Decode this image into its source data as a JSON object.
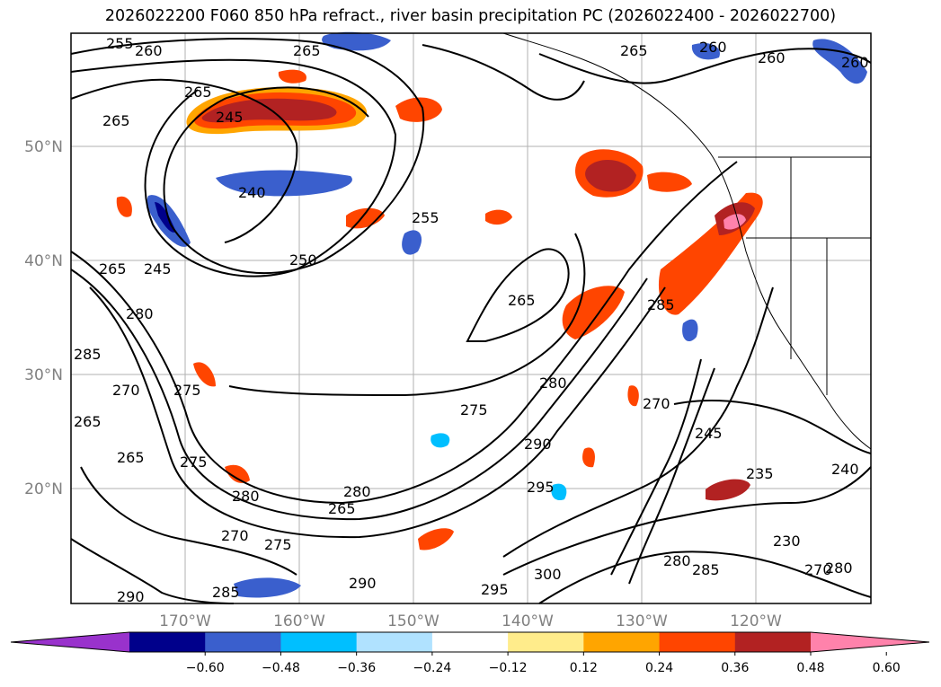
{
  "title": "2026022200 F060 850 hPa refract., river basin precipitation PC (2026022400 - 2026022700)",
  "lat_labels": [
    "50°N",
    "40°N",
    "30°N",
    "20°N"
  ],
  "lon_labels": [
    "170°W",
    "160°W",
    "150°W",
    "140°W",
    "130°W",
    "120°W"
  ],
  "colorbar": {
    "tick_labels": [
      "−0.60",
      "−0.48",
      "−0.36",
      "−0.24",
      "−0.12",
      "0.12",
      "0.24",
      "0.36",
      "0.48",
      "0.60"
    ],
    "colors": [
      "#9932cc",
      "#00008b",
      "#3a5fcd",
      "#00bfff",
      "#b0e2ff",
      "#ffffff",
      "#ffec8b",
      "#ffa500",
      "#ff4500",
      "#b22222",
      "#ff82ab"
    ]
  },
  "contour_labels": [
    "255",
    "260",
    "265",
    "265",
    "260",
    "260",
    "265",
    "265",
    "245",
    "240",
    "255",
    "250",
    "245",
    "265",
    "265",
    "285",
    "280",
    "285",
    "270",
    "275",
    "270",
    "265",
    "275",
    "280",
    "265",
    "265",
    "280",
    "270",
    "275",
    "290",
    "285",
    "290",
    "275",
    "280",
    "290",
    "295",
    "295",
    "300",
    "280",
    "285",
    "245",
    "235",
    "240",
    "230",
    "270",
    "280",
    "260"
  ]
}
